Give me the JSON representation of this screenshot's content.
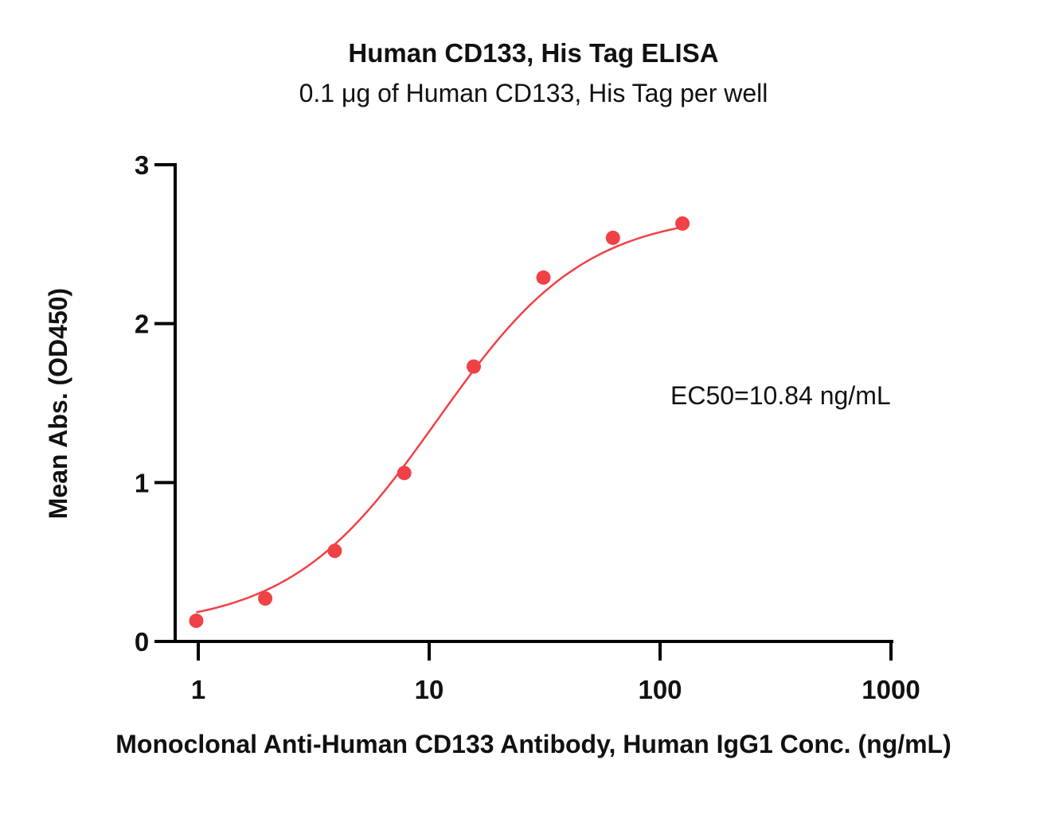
{
  "chart_data": {
    "type": "scatter",
    "title": "Human CD133, His Tag ELISA",
    "subtitle": "0.1 μg of Human CD133, His Tag per well",
    "xlabel": "Monoclonal Anti-Human CD133 Antibody, Human IgG1 Conc. (ng/mL)",
    "ylabel": "Mean Abs. (OD450)",
    "x_scale": "log10",
    "xlim": [
      1,
      1000
    ],
    "ylim": [
      0,
      3
    ],
    "x_ticks": [
      "1",
      "10",
      "100",
      "1000"
    ],
    "y_ticks": [
      "0",
      "1",
      "2",
      "3"
    ],
    "annotation": "EC50=10.84 ng/mL",
    "series": [
      {
        "points": [
          {
            "x": 0.98,
            "y": 0.13
          },
          {
            "x": 1.95,
            "y": 0.27
          },
          {
            "x": 3.9,
            "y": 0.57
          },
          {
            "x": 7.8,
            "y": 1.06
          },
          {
            "x": 15.6,
            "y": 1.73
          },
          {
            "x": 31.25,
            "y": 2.29
          },
          {
            "x": 62.5,
            "y": 2.54
          },
          {
            "x": 125,
            "y": 2.63
          }
        ],
        "fit": "4PL",
        "color": "#f04146"
      }
    ],
    "grid": false,
    "legend": "none"
  }
}
